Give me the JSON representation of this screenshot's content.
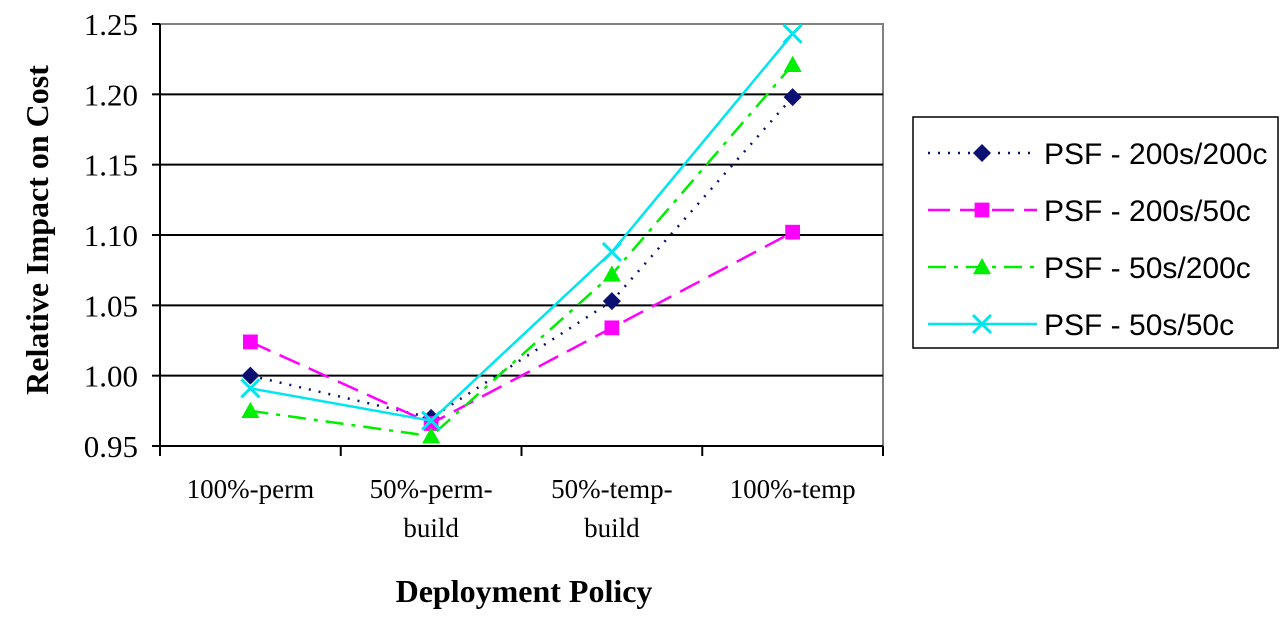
{
  "chart_data": {
    "type": "line",
    "categories": [
      [
        "100%-perm"
      ],
      [
        "50%-perm-",
        "build"
      ],
      [
        "50%-temp-",
        "build"
      ],
      [
        "100%-temp"
      ]
    ],
    "xlabel": "Deployment Policy",
    "ylabel": "Relative Impact on Cost",
    "ylim": [
      0.95,
      1.25
    ],
    "yticks": [
      "0.95",
      "1.00",
      "1.05",
      "1.10",
      "1.15",
      "1.20",
      "1.25"
    ],
    "grid": true,
    "legend_position": "right",
    "series": [
      {
        "name": "PSF - 200s/200c",
        "values": [
          1.0,
          0.97,
          1.053,
          1.198
        ],
        "color": "#0a1172",
        "marker": "diamond",
        "dash": "dotted"
      },
      {
        "name": "PSF - 200s/50c",
        "values": [
          1.024,
          0.966,
          1.034,
          1.102
        ],
        "color": "#ff00ff",
        "marker": "square",
        "dash": "dashed"
      },
      {
        "name": "PSF - 50s/200c",
        "values": [
          0.975,
          0.957,
          1.072,
          1.221
        ],
        "color": "#00ee00",
        "marker": "triangle",
        "dash": "dashdot"
      },
      {
        "name": "PSF - 50s/50c",
        "values": [
          0.991,
          0.968,
          1.088,
          1.243
        ],
        "color": "#00e5ee",
        "marker": "x",
        "dash": "solid"
      }
    ]
  }
}
